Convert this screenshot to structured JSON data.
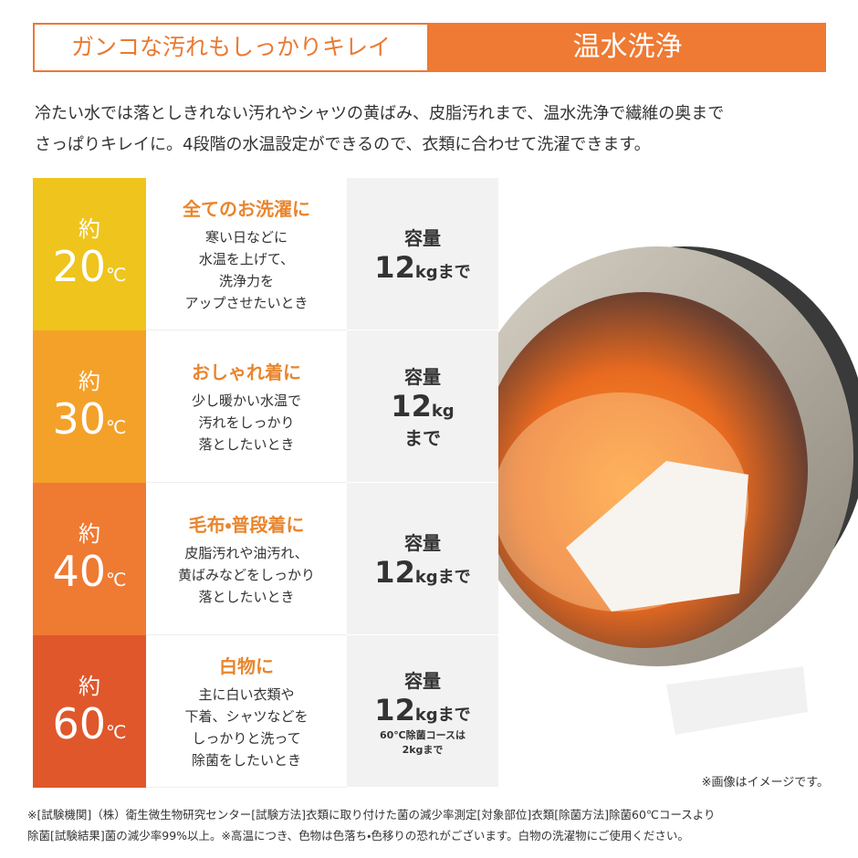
{
  "header": {
    "tagline": "ガンコな汚れもしっかりキレイ",
    "title": "温水洗浄"
  },
  "intro": [
    "冷たい水では落としきれない汚れやシャツの黄ばみ、皮脂汚れまで、温水洗浄で繊維の奥まで",
    "さっぱりキレイに。4段階の水温設定ができるので、衣類に合わせて洗濯できます。"
  ],
  "rows": [
    {
      "prefix": "約",
      "temp": "20",
      "unit": "℃",
      "color": "#efc41c",
      "title": "全てのお洗濯に",
      "desc": [
        "寒い日などに",
        "水温を上げて、",
        "洗浄力を",
        "アップさせたいとき"
      ],
      "capacity_label": "容量",
      "amount": "12",
      "amount_unit": "kgまで"
    },
    {
      "prefix": "約",
      "temp": "30",
      "unit": "℃",
      "color": "#f4a12a",
      "title": "おしゃれ着に",
      "desc": [
        "少し暖かい水温で",
        "汚れをしっかり",
        "落としたいとき"
      ],
      "capacity_label": "容量",
      "amount": "12",
      "amount_unit": "kg",
      "suffix": "まで"
    },
    {
      "prefix": "約",
      "temp": "40",
      "unit": "℃",
      "color": "#ef7a32",
      "title": "毛布・普段着に",
      "desc": [
        "皮脂汚れや油汚れ、",
        "黄ばみなどをしっかり",
        "落としたいとき"
      ],
      "capacity_label": "容量",
      "amount": "12",
      "amount_unit": "kgまで"
    },
    {
      "prefix": "約",
      "temp": "60",
      "unit": "℃",
      "color": "#e0572b",
      "title": "白物に",
      "desc": [
        "主に白い衣類や",
        "下着、シャツなどを",
        "しっかりと洗って",
        "除菌をしたいとき"
      ],
      "capacity_label": "容量",
      "amount": "12",
      "amount_unit": "kgまで",
      "note": [
        "60℃除菌コースは",
        "2kgまで"
      ]
    }
  ],
  "image_note": "※画像はイメージです。",
  "footnote": [
    "※[試験機関]（株）衛生微生物研究センター[試験方法]衣類に取り付けた菌の減少率測定[対象部位]衣類[除菌方法]除菌60℃コースより",
    "除菌[試験結果]菌の減少率99%以上。※高温につき、色物は色落ち・色移りの恐れがございます。白物の洗濯物にご使用ください。"
  ]
}
